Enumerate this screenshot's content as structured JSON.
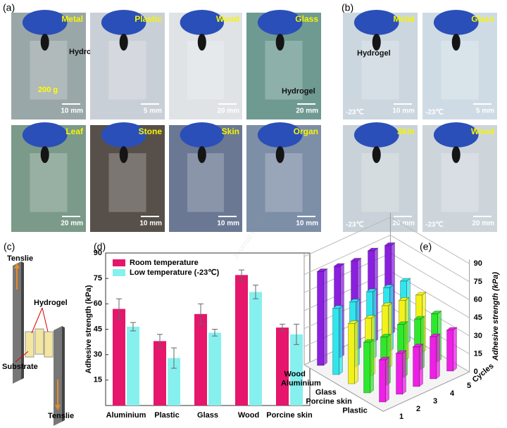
{
  "figure": {
    "watermark": "Journal Pre-proof",
    "panel_a": {
      "label": "(a)",
      "tiles": [
        {
          "name": "Metal",
          "scale": "10 mm",
          "notes": [
            "Hydrogel",
            "200 g"
          ]
        },
        {
          "name": "Plastic",
          "scale": "5 mm"
        },
        {
          "name": "Wood",
          "scale": "20 mm"
        },
        {
          "name": "Glass",
          "scale": "20 mm",
          "notes": [
            "Hydrogel"
          ]
        },
        {
          "name": "Leaf",
          "scale": "20 mm"
        },
        {
          "name": "Stone",
          "scale": "10 mm"
        },
        {
          "name": "Skin",
          "scale": "10 mm"
        },
        {
          "name": "Organ",
          "scale": "10 mm"
        }
      ]
    },
    "panel_b": {
      "label": "(b)",
      "tiles": [
        {
          "name": "Metal",
          "scale": "10 mm",
          "temperature": "-23℃",
          "notes": [
            "Hydrogel"
          ]
        },
        {
          "name": "Glass",
          "scale": "5 mm",
          "temperature": "-23℃"
        },
        {
          "name": "Skin",
          "scale": "20 mm",
          "temperature": "-23℃"
        },
        {
          "name": "Wood",
          "scale": "20 mm",
          "temperature": "-23℃"
        }
      ]
    },
    "panel_c": {
      "label": "(c)",
      "top_force": "Tenslie",
      "hydrogel": "Hydrogel",
      "substrate": "Substrate",
      "bottom_force": "Tenslie"
    }
  },
  "chart_data": [
    {
      "type": "bar",
      "label": "(d)",
      "y_label": "Adhesive strength (kPa)",
      "categories": [
        "Aluminium",
        "Plastic",
        "Glass",
        "Wood",
        "Porcine skin"
      ],
      "series": [
        {
          "name": "Room temperature",
          "color": "#e5166b",
          "values": [
            57,
            38,
            54,
            77,
            46
          ],
          "errors": [
            6,
            4,
            6,
            3,
            2
          ]
        },
        {
          "name": "Low temperature (-23℃)",
          "color": "#86f0ef",
          "values": [
            46.5,
            28,
            43,
            67,
            42
          ],
          "errors": [
            2.5,
            6,
            2,
            4,
            6
          ]
        }
      ],
      "ylim": [
        0,
        90
      ],
      "yticks": [
        15,
        30,
        45,
        60,
        75,
        90
      ],
      "legend": "upper left"
    },
    {
      "type": "bar3d",
      "label": "(e)",
      "z_label": "Adhesive strength (kPa)",
      "y_label": "Cycles",
      "categories": [
        "Wood",
        "Aluminium",
        "Glass",
        "Porcine skin",
        "Plastic"
      ],
      "x": [
        1,
        2,
        3,
        4,
        5
      ],
      "series": [
        {
          "color": "#8a1fe0",
          "values": [
            78,
            76,
            74,
            76,
            74
          ]
        },
        {
          "color": "#2fe6ec",
          "values": [
            55,
            54,
            56,
            53,
            52
          ]
        },
        {
          "color": "#f2f21a",
          "values": [
            50,
            48,
            52,
            50,
            48
          ]
        },
        {
          "color": "#2ee82e",
          "values": [
            42,
            40,
            44,
            42,
            40
          ]
        },
        {
          "color": "#ee1fe6",
          "values": [
            35,
            34,
            33,
            35,
            34
          ]
        }
      ],
      "zlim": [
        0,
        90
      ],
      "zticks": [
        0,
        15,
        30,
        45,
        60,
        75,
        90
      ]
    }
  ]
}
